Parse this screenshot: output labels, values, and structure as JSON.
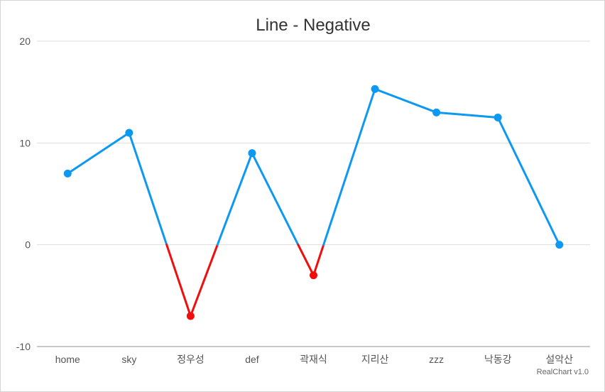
{
  "chart_data": {
    "type": "line",
    "title": "Line - Negative",
    "categories": [
      "home",
      "sky",
      "정우성",
      "def",
      "곽재식",
      "지리산",
      "zzz",
      "낙동강",
      "설악산"
    ],
    "values": [
      7,
      11,
      -7,
      9,
      -3,
      15.3,
      13,
      12.5,
      0
    ],
    "ylim": [
      -10,
      20
    ],
    "yticks": [
      20,
      10,
      0,
      -10
    ],
    "grid": true,
    "colors": {
      "positive": "#0d98f2",
      "negative": "#f20d0d"
    }
  },
  "credit": "RealChart v1.0"
}
